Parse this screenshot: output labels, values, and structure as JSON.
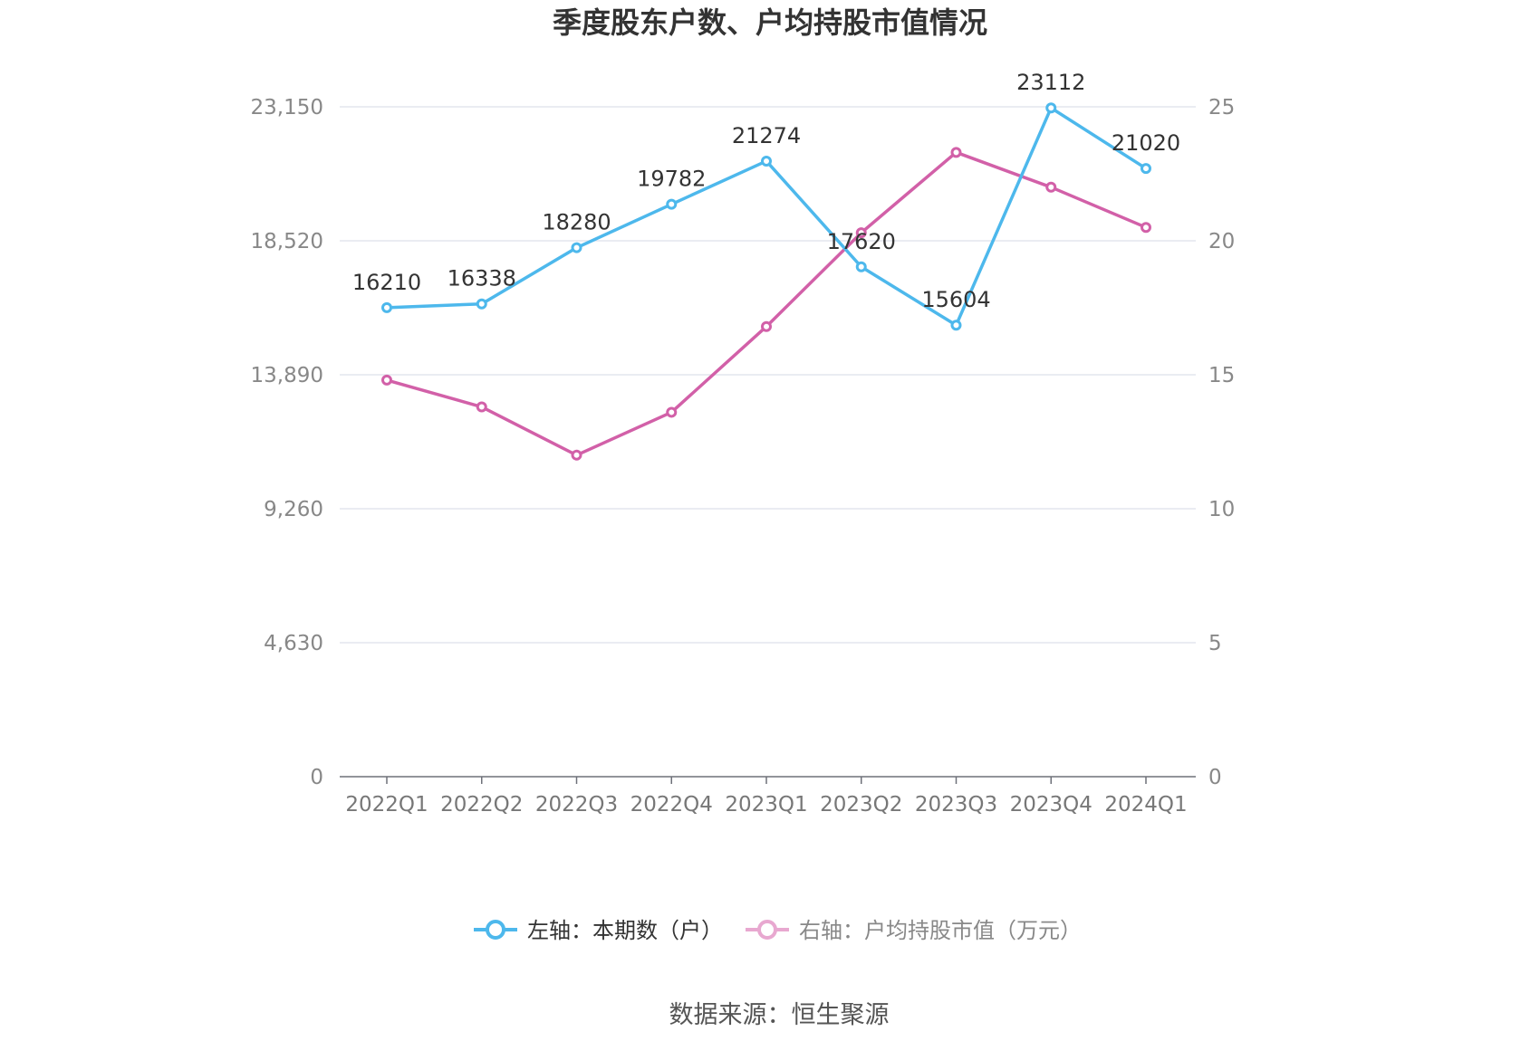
{
  "chart_data": {
    "type": "line",
    "title": "季度股东户数、户均持股市值情况",
    "categories": [
      "2022Q1",
      "2022Q2",
      "2022Q3",
      "2022Q4",
      "2023Q1",
      "2023Q2",
      "2023Q3",
      "2023Q4",
      "2024Q1"
    ],
    "left_axis": {
      "ticks": [
        "0",
        "4,630",
        "9,260",
        "13,890",
        "18,520",
        "23,150"
      ],
      "min": 0,
      "max": 23150
    },
    "right_axis": {
      "ticks": [
        "0",
        "5",
        "10",
        "15",
        "20",
        "25"
      ],
      "min": 0,
      "max": 25
    },
    "series": [
      {
        "name": "左轴：本期数（户）",
        "axis": "left",
        "color": "#4db8ec",
        "values": [
          16210,
          16338,
          18280,
          19782,
          21274,
          17620,
          15604,
          23112,
          21020
        ],
        "labels": [
          "16210",
          "16338",
          "18280",
          "19782",
          "21274",
          "17620",
          "15604",
          "23112",
          "21020"
        ]
      },
      {
        "name": "右轴：户均持股市值（万元）",
        "axis": "right",
        "color": "#d260a8",
        "values": [
          14.8,
          13.8,
          12.0,
          13.6,
          16.8,
          20.3,
          23.3,
          22.0,
          20.5
        ]
      }
    ],
    "legend_position": "bottom",
    "grid": true,
    "source": "数据来源：恒生聚源"
  }
}
